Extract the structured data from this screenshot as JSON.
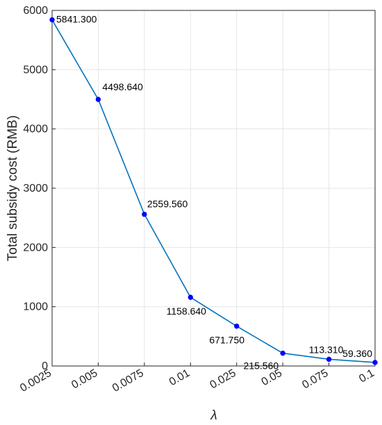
{
  "chart_data": {
    "type": "line",
    "title": "",
    "xlabel": "λ",
    "ylabel": "Total subsidy cost (RMB)",
    "categories": [
      "0.0025",
      "0.005",
      "0.0075",
      "0.01",
      "0.025",
      "0.05",
      "0.075",
      "0.1"
    ],
    "values": [
      5841.3,
      4498.64,
      2559.56,
      1158.64,
      671.75,
      215.56,
      113.31,
      59.36
    ],
    "data_labels": [
      "5841.300",
      "4498.640",
      "2559.560",
      "1158.640",
      "671.750",
      "215.560",
      "113.310",
      "59.360"
    ],
    "ylim": [
      0,
      6000
    ],
    "yticks": [
      0,
      1000,
      2000,
      3000,
      4000,
      5000,
      6000
    ],
    "grid": true,
    "line_color": "#0072BD",
    "marker_color": "#0000FF"
  }
}
